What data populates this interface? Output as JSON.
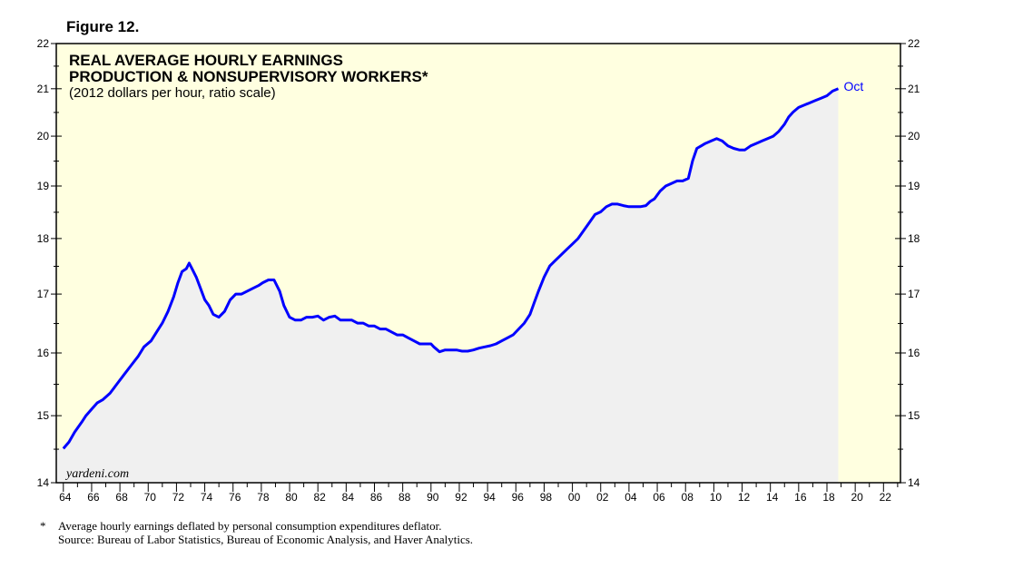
{
  "figure_label": "Figure 12.",
  "footnote": {
    "asterisk": "*",
    "line1": "Average hourly earnings deflated by personal consumption expenditures deflator.",
    "line2": "Source: Bureau of Labor Statistics, Bureau of Economic Analysis, and Haver Analytics."
  },
  "colors": {
    "background": "#ffffe0",
    "area_fill": "#f0f0f0",
    "line": "#0000ff",
    "frame": "#000000"
  },
  "chart_data": {
    "type": "line",
    "title_lines": [
      "REAL AVERAGE HOURLY EARNINGS",
      "PRODUCTION & NONSUPERVISORY WORKERS*"
    ],
    "subtitle": "(2012 dollars per hour, ratio scale)",
    "watermark": "yardeni.com",
    "end_label": "Oct",
    "y_scale": "log",
    "ylim": [
      14,
      22
    ],
    "xlim": [
      1963.5,
      2023.2
    ],
    "y_ticks": [
      14,
      15,
      16,
      17,
      18,
      19,
      20,
      21,
      22
    ],
    "y_tick_labels": [
      "14",
      "15",
      "16",
      "17",
      "18",
      "19",
      "20",
      "21",
      "22"
    ],
    "x_tick_years": [
      1964,
      1966,
      1968,
      1970,
      1972,
      1974,
      1976,
      1978,
      1980,
      1982,
      1984,
      1986,
      1988,
      1990,
      1992,
      1994,
      1996,
      1998,
      2000,
      2002,
      2004,
      2006,
      2008,
      2010,
      2012,
      2014,
      2016,
      2018,
      2020,
      2022
    ],
    "x_tick_labels": [
      "64",
      "66",
      "68",
      "70",
      "72",
      "74",
      "76",
      "78",
      "80",
      "82",
      "84",
      "86",
      "88",
      "90",
      "92",
      "94",
      "96",
      "98",
      "00",
      "02",
      "04",
      "06",
      "08",
      "10",
      "12",
      "14",
      "16",
      "18",
      "20",
      "22"
    ],
    "data_end": 2018.8,
    "series": [
      {
        "name": "Real Average Hourly Earnings",
        "x": [
          1964.0,
          1964.4,
          1964.8,
          1965.3,
          1965.6,
          1966.0,
          1966.4,
          1966.8,
          1967.3,
          1967.8,
          1968.3,
          1968.8,
          1969.3,
          1969.7,
          1970.2,
          1970.6,
          1971.0,
          1971.4,
          1971.8,
          1972.1,
          1972.4,
          1972.7,
          1972.9,
          1973.1,
          1973.4,
          1973.7,
          1974.0,
          1974.3,
          1974.6,
          1975.0,
          1975.4,
          1975.8,
          1976.2,
          1976.6,
          1977.0,
          1977.4,
          1977.8,
          1978.1,
          1978.5,
          1978.9,
          1979.3,
          1979.6,
          1980.0,
          1980.4,
          1980.8,
          1981.2,
          1981.6,
          1982.0,
          1982.4,
          1982.8,
          1983.2,
          1983.6,
          1984.0,
          1984.4,
          1984.8,
          1985.2,
          1985.6,
          1986.0,
          1986.4,
          1986.8,
          1987.2,
          1987.6,
          1988.0,
          1988.4,
          1988.8,
          1989.2,
          1989.6,
          1990.0,
          1990.2,
          1990.6,
          1991.0,
          1991.4,
          1991.8,
          1992.2,
          1992.6,
          1993.0,
          1993.4,
          1993.8,
          1994.2,
          1994.6,
          1995.0,
          1995.4,
          1995.8,
          1996.2,
          1996.6,
          1997.0,
          1997.3,
          1997.6,
          1998.0,
          1998.4,
          1998.8,
          1999.2,
          1999.6,
          2000.0,
          2000.4,
          2000.8,
          2001.2,
          2001.6,
          2002.0,
          2002.4,
          2002.8,
          2003.2,
          2003.6,
          2004.0,
          2004.4,
          2004.8,
          2005.2,
          2005.5,
          2005.8,
          2006.2,
          2006.6,
          2007.0,
          2007.4,
          2007.8,
          2008.2,
          2008.5,
          2008.8,
          2009.1,
          2009.4,
          2009.8,
          2010.2,
          2010.6,
          2011.0,
          2011.4,
          2011.8,
          2012.2,
          2012.6,
          2013.0,
          2013.4,
          2013.8,
          2014.2,
          2014.6,
          2015.0,
          2015.3,
          2015.6,
          2016.0,
          2016.4,
          2016.8,
          2017.2,
          2017.6,
          2018.0,
          2018.4,
          2018.8
        ],
        "values": [
          14.5,
          14.6,
          14.75,
          14.9,
          15.0,
          15.1,
          15.2,
          15.25,
          15.35,
          15.5,
          15.65,
          15.8,
          15.95,
          16.1,
          16.2,
          16.35,
          16.5,
          16.7,
          16.95,
          17.2,
          17.4,
          17.45,
          17.55,
          17.45,
          17.3,
          17.1,
          16.9,
          16.8,
          16.65,
          16.6,
          16.7,
          16.9,
          17.0,
          17.0,
          17.05,
          17.1,
          17.15,
          17.2,
          17.25,
          17.25,
          17.05,
          16.8,
          16.6,
          16.55,
          16.55,
          16.6,
          16.6,
          16.62,
          16.55,
          16.6,
          16.62,
          16.55,
          16.55,
          16.55,
          16.5,
          16.5,
          16.45,
          16.45,
          16.4,
          16.4,
          16.35,
          16.3,
          16.3,
          16.25,
          16.2,
          16.15,
          16.15,
          16.15,
          16.1,
          16.02,
          16.05,
          16.05,
          16.05,
          16.03,
          16.03,
          16.05,
          16.08,
          16.1,
          16.12,
          16.15,
          16.2,
          16.25,
          16.3,
          16.4,
          16.5,
          16.65,
          16.85,
          17.05,
          17.3,
          17.5,
          17.6,
          17.7,
          17.8,
          17.9,
          18.0,
          18.15,
          18.3,
          18.45,
          18.5,
          18.6,
          18.65,
          18.65,
          18.62,
          18.6,
          18.6,
          18.6,
          18.62,
          18.7,
          18.75,
          18.9,
          19.0,
          19.05,
          19.1,
          19.1,
          19.15,
          19.5,
          19.75,
          19.8,
          19.85,
          19.9,
          19.95,
          19.9,
          19.8,
          19.75,
          19.72,
          19.72,
          19.8,
          19.85,
          19.9,
          19.95,
          20.0,
          20.1,
          20.25,
          20.4,
          20.5,
          20.6,
          20.65,
          20.7,
          20.75,
          20.8,
          20.85,
          20.95,
          21.0
        ]
      }
    ]
  }
}
